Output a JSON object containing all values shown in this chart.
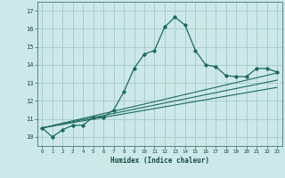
{
  "title": "",
  "xlabel": "Humidex (Indice chaleur)",
  "ylabel": "",
  "background_color": "#cce8e8",
  "grid_color": "#aacccc",
  "line_color": "#1a6b5e",
  "ylim": [
    9.5,
    17.5
  ],
  "xlim": [
    -0.5,
    23.5
  ],
  "yticks": [
    10,
    11,
    12,
    13,
    14,
    15,
    16,
    17
  ],
  "xticks": [
    0,
    1,
    2,
    3,
    4,
    5,
    6,
    7,
    8,
    9,
    10,
    11,
    12,
    13,
    14,
    15,
    16,
    17,
    18,
    19,
    20,
    21,
    22,
    23
  ],
  "main_x": [
    0,
    1,
    2,
    3,
    4,
    5,
    6,
    7,
    8,
    9,
    10,
    11,
    12,
    13,
    14,
    15,
    16,
    17,
    18,
    19,
    20,
    21,
    22,
    23
  ],
  "main_y": [
    10.5,
    10.0,
    10.4,
    10.65,
    10.65,
    11.1,
    11.1,
    11.5,
    12.5,
    13.8,
    14.6,
    14.8,
    16.1,
    16.65,
    16.2,
    14.8,
    14.0,
    13.9,
    13.4,
    13.35,
    13.35,
    13.8,
    13.8,
    13.6
  ],
  "line1_x": [
    0,
    23
  ],
  "line1_y": [
    10.5,
    13.55
  ],
  "line2_x": [
    0,
    23
  ],
  "line2_y": [
    10.5,
    13.15
  ],
  "line3_x": [
    0,
    23
  ],
  "line3_y": [
    10.5,
    12.75
  ]
}
